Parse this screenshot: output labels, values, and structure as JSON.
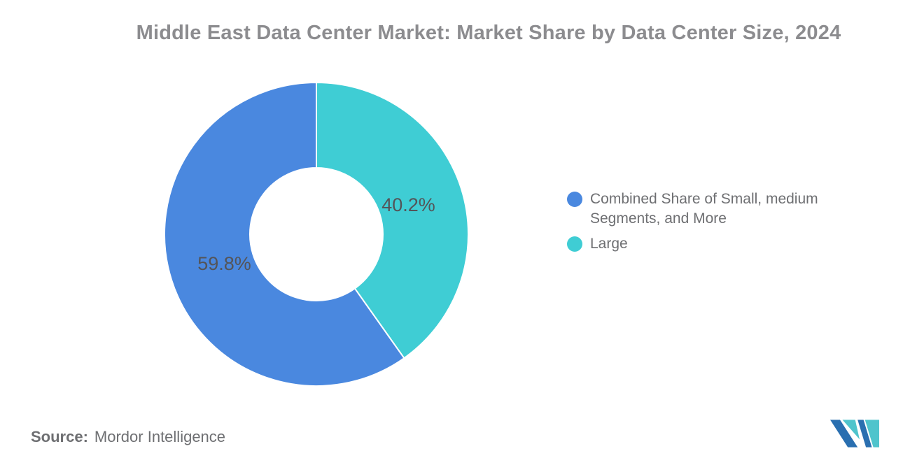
{
  "title": "Middle East Data Center Market: Market Share by Data Center Size, 2024",
  "chart_data": {
    "type": "pie",
    "subtype": "donut",
    "title": "Middle East Data Center Market: Market Share by Data Center Size, 2024",
    "start_angle_deg": 0,
    "direction": "clockwise",
    "inner_radius_ratio": 0.44,
    "legend_position": "right",
    "slices": [
      {
        "label": "Combined Share of Small, medium Segments, and More",
        "value": 59.8,
        "label_text": "59.8%",
        "color": "#4a88df"
      },
      {
        "label": "Large",
        "value": 40.2,
        "label_text": "40.2%",
        "color": "#3fcdd4"
      }
    ]
  },
  "source": {
    "prefix": "Source:",
    "name": "Mordor Intelligence"
  },
  "logo": {
    "name": "mordor-intelligence-logo",
    "colors": {
      "dark_blue": "#2a6fb0",
      "teal": "#4fc4cc"
    }
  }
}
